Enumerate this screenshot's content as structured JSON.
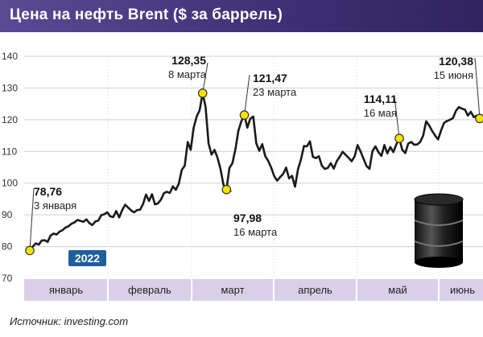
{
  "header": {
    "title": "Цена на нефть Brent ($ за баррель)"
  },
  "source": {
    "label": "Источник:",
    "text": "investing.com"
  },
  "colors": {
    "header": "#3d2f73",
    "line": "#1a1a1a",
    "marker": "#f5e400",
    "month_band": "#d9d0e8",
    "year_badge": "#1e5f9e"
  },
  "icon": "oil-barrel-icon",
  "chart_data": {
    "type": "line",
    "title": "Цена на нефть Brent ($ за баррель)",
    "year_badge": "2022",
    "ylim": [
      70,
      140
    ],
    "yticks": [
      70,
      80,
      90,
      100,
      110,
      120,
      130,
      140
    ],
    "months": [
      "январь",
      "февраль",
      "март",
      "апрель",
      "май",
      "июнь"
    ],
    "x_unit": "days since 1 January 2022",
    "series": [
      {
        "name": "Brent",
        "points": [
          [
            2,
            78.76
          ],
          [
            3,
            80
          ],
          [
            4,
            81
          ],
          [
            5,
            80.6
          ],
          [
            6,
            81.9
          ],
          [
            7,
            82
          ],
          [
            8,
            81.5
          ],
          [
            9,
            83.5
          ],
          [
            10,
            84.1
          ],
          [
            11,
            83.8
          ],
          [
            12,
            84.7
          ],
          [
            13,
            85.2
          ],
          [
            14,
            86
          ],
          [
            15,
            86.4
          ],
          [
            16,
            87.2
          ],
          [
            17,
            87.6
          ],
          [
            18,
            88.4
          ],
          [
            19,
            88.1
          ],
          [
            20,
            87.8
          ],
          [
            21,
            88.6
          ],
          [
            22,
            87.4
          ],
          [
            23,
            86.8
          ],
          [
            24,
            87.9
          ],
          [
            25,
            88.2
          ],
          [
            26,
            89.9
          ],
          [
            27,
            90.2
          ],
          [
            28,
            90.8
          ],
          [
            29,
            89.5
          ],
          [
            30,
            89.3
          ],
          [
            31,
            91.2
          ],
          [
            32,
            89.2
          ],
          [
            33,
            91.5
          ],
          [
            34,
            93.2
          ],
          [
            35,
            92.3
          ],
          [
            36,
            91.4
          ],
          [
            37,
            90.8
          ],
          [
            38,
            91.5
          ],
          [
            39,
            91.6
          ],
          [
            40,
            93.4
          ],
          [
            41,
            96.4
          ],
          [
            42,
            94.4
          ],
          [
            43,
            96.5
          ],
          [
            44,
            93.3
          ],
          [
            45,
            93.6
          ],
          [
            46,
            94.8
          ],
          [
            47,
            96.8
          ],
          [
            48,
            97.3
          ],
          [
            49,
            96.9
          ],
          [
            50,
            99
          ],
          [
            51,
            97.9
          ],
          [
            52,
            99.8
          ],
          [
            53,
            104.2
          ],
          [
            54,
            105.5
          ],
          [
            55,
            113
          ],
          [
            56,
            110.5
          ],
          [
            57,
            117.5
          ],
          [
            58,
            121
          ],
          [
            59,
            123
          ],
          [
            60,
            128.35
          ],
          [
            61,
            124
          ],
          [
            62,
            112.5
          ],
          [
            63,
            109
          ],
          [
            64,
            110.5
          ],
          [
            65,
            108
          ],
          [
            66,
            104.5
          ],
          [
            67,
            99.5
          ],
          [
            68,
            97.98
          ],
          [
            69,
            104.8
          ],
          [
            70,
            106.3
          ],
          [
            71,
            110.6
          ],
          [
            72,
            116.5
          ],
          [
            73,
            119.5
          ],
          [
            74,
            121.47
          ],
          [
            75,
            117.5
          ],
          [
            76,
            120.3
          ],
          [
            77,
            121
          ],
          [
            78,
            112.5
          ],
          [
            79,
            110.2
          ],
          [
            80,
            112.3
          ],
          [
            81,
            108.5
          ],
          [
            82,
            107
          ],
          [
            83,
            104.9
          ],
          [
            84,
            102.2
          ],
          [
            85,
            100.8
          ],
          [
            86,
            101.9
          ],
          [
            87,
            102.9
          ],
          [
            88,
            104.9
          ],
          [
            89,
            101.5
          ],
          [
            90,
            102.3
          ],
          [
            91,
            98.9
          ],
          [
            92,
            104.4
          ],
          [
            93,
            107.5
          ],
          [
            94,
            111.7
          ],
          [
            95,
            111.6
          ],
          [
            96,
            113.2
          ],
          [
            97,
            108.3
          ],
          [
            98,
            107.9
          ],
          [
            99,
            108.5
          ],
          [
            100,
            105.5
          ],
          [
            101,
            104.5
          ],
          [
            102,
            104.8
          ],
          [
            103,
            106.3
          ],
          [
            104,
            104.6
          ],
          [
            105,
            106.9
          ],
          [
            106,
            108.3
          ],
          [
            107,
            109.9
          ],
          [
            108,
            108.9
          ],
          [
            109,
            108
          ],
          [
            110,
            106.9
          ],
          [
            111,
            108.4
          ],
          [
            112,
            112
          ],
          [
            113,
            110
          ],
          [
            114,
            107.7
          ],
          [
            115,
            105.4
          ],
          [
            116,
            104.5
          ],
          [
            117,
            110.1
          ],
          [
            118,
            111.6
          ],
          [
            119,
            109.8
          ],
          [
            120,
            108.6
          ],
          [
            121,
            112
          ],
          [
            122,
            109.4
          ],
          [
            123,
            111.4
          ],
          [
            124,
            109.8
          ],
          [
            125,
            112.2
          ],
          [
            126,
            114.11
          ],
          [
            127,
            110.5
          ],
          [
            128,
            109.5
          ],
          [
            129,
            112.5
          ],
          [
            130,
            113
          ],
          [
            131,
            112.1
          ],
          [
            132,
            112.2
          ],
          [
            133,
            113
          ],
          [
            134,
            115
          ],
          [
            135,
            119.5
          ],
          [
            136,
            118.2
          ],
          [
            137,
            116.5
          ],
          [
            138,
            115
          ],
          [
            139,
            113.8
          ],
          [
            140,
            116.6
          ],
          [
            141,
            119
          ],
          [
            142,
            119.6
          ],
          [
            143,
            120
          ],
          [
            144,
            120.5
          ],
          [
            145,
            122.8
          ],
          [
            146,
            124
          ],
          [
            147,
            123.5
          ],
          [
            148,
            123.2
          ],
          [
            149,
            121.3
          ],
          [
            150,
            122.5
          ],
          [
            151,
            120.8
          ],
          [
            152,
            121.3
          ],
          [
            153,
            120.38
          ]
        ]
      }
    ],
    "annotations": [
      {
        "value": "78,76",
        "date": "3 января",
        "x": 2,
        "y": 78.76
      },
      {
        "value": "128,35",
        "date": "8 марта",
        "x": 60,
        "y": 128.35
      },
      {
        "value": "97,98",
        "date": "16 марта",
        "x": 68,
        "y": 97.98
      },
      {
        "value": "121,47",
        "date": "23 марта",
        "x": 74,
        "y": 121.47
      },
      {
        "value": "114,11",
        "date": "16 мая",
        "x": 126,
        "y": 114.11
      },
      {
        "value": "120,38",
        "date": "15 июня",
        "x": 153,
        "y": 120.38
      }
    ]
  }
}
